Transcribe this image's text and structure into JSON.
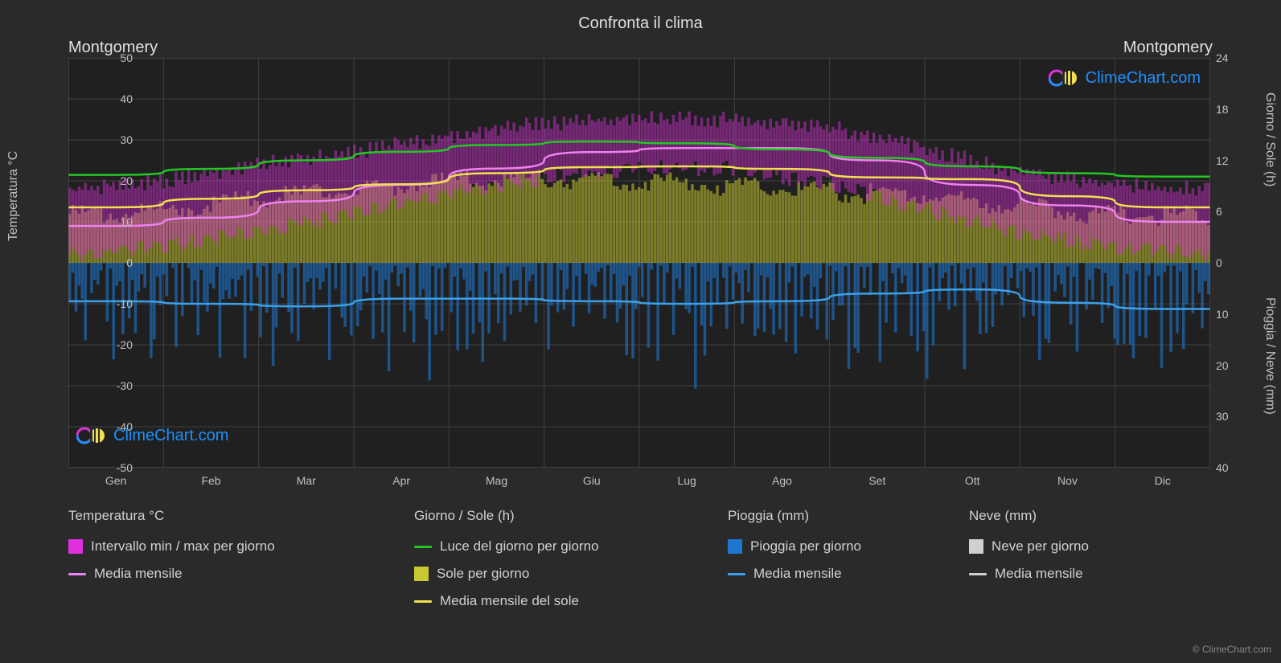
{
  "title": "Confronta il clima",
  "city_left": "Montgomery",
  "city_right": "Montgomery",
  "chart": {
    "background_color": "#2a2a2a",
    "plot_background": "#252525",
    "grid_color": "#404040",
    "text_color": "#c0c0c0",
    "months": [
      "Gen",
      "Feb",
      "Mar",
      "Apr",
      "Mag",
      "Giu",
      "Lug",
      "Ago",
      "Set",
      "Ott",
      "Nov",
      "Dic"
    ],
    "y_left": {
      "label": "Temperatura °C",
      "min": -50,
      "max": 50,
      "step": 10
    },
    "y_right_top": {
      "label": "Giorno / Sole (h)",
      "min": 0,
      "max": 24,
      "step": 6
    },
    "y_right_bottom": {
      "label": "Pioggia / Neve (mm)",
      "min": 0,
      "max": 40,
      "step": 10
    },
    "series": {
      "temp_range": {
        "color": "#e030e0",
        "max": [
          18,
          20,
          24,
          27,
          31,
          34,
          35,
          35,
          33,
          28,
          22,
          19
        ],
        "min": [
          2,
          4,
          8,
          12,
          17,
          21,
          23,
          23,
          19,
          13,
          7,
          4
        ]
      },
      "temp_mean": {
        "color": "#ee82ee",
        "values": [
          9,
          11,
          15,
          19,
          23,
          27,
          28,
          28,
          25,
          19,
          14,
          10
        ],
        "line_width": 2.5
      },
      "daylight": {
        "color": "#22c822",
        "values": [
          10.3,
          11.0,
          12.0,
          13.0,
          13.8,
          14.2,
          14.0,
          13.3,
          12.3,
          11.3,
          10.5,
          10.1
        ],
        "line_width": 2.5
      },
      "sun_area": {
        "color": "#c8c832",
        "values": [
          5.5,
          6.2,
          7.5,
          8.5,
          9.5,
          10.0,
          9.5,
          9.0,
          8.2,
          8.0,
          6.5,
          5.5
        ],
        "opacity": 0.55
      },
      "sun_mean": {
        "color": "#f0e050",
        "values": [
          6.5,
          7.5,
          8.5,
          9.2,
          10.5,
          11.2,
          11.3,
          11.0,
          10.0,
          9.8,
          7.8,
          6.5
        ],
        "line_width": 2.5
      },
      "rain_bars": {
        "color": "#1e78d2",
        "sample_max": 20,
        "opacity": 0.6
      },
      "rain_mean": {
        "color": "#3ca0e8",
        "values": [
          7.5,
          8.0,
          8.5,
          7.0,
          7.0,
          7.5,
          8.0,
          7.5,
          6.0,
          5.2,
          7.8,
          9.0
        ],
        "line_width": 2.5
      },
      "snow": {
        "color": "#d0d0d0",
        "values": [
          0,
          0,
          0,
          0,
          0,
          0,
          0,
          0,
          0,
          0,
          0,
          0
        ]
      }
    }
  },
  "legend": {
    "col1": {
      "heading": "Temperatura °C",
      "items": [
        {
          "type": "box",
          "color": "#e030e0",
          "label": "Intervallo min / max per giorno"
        },
        {
          "type": "line",
          "color": "#ee82ee",
          "label": "Media mensile"
        }
      ]
    },
    "col2": {
      "heading": "Giorno / Sole (h)",
      "items": [
        {
          "type": "line",
          "color": "#22c822",
          "label": "Luce del giorno per giorno"
        },
        {
          "type": "box",
          "color": "#c8c832",
          "label": "Sole per giorno"
        },
        {
          "type": "line",
          "color": "#f0e050",
          "label": "Media mensile del sole"
        }
      ]
    },
    "col3": {
      "heading": "Pioggia (mm)",
      "items": [
        {
          "type": "box",
          "color": "#1e78d2",
          "label": "Pioggia per giorno"
        },
        {
          "type": "line",
          "color": "#3ca0e8",
          "label": "Media mensile"
        }
      ]
    },
    "col4": {
      "heading": "Neve (mm)",
      "items": [
        {
          "type": "box",
          "color": "#d0d0d0",
          "label": "Neve per giorno"
        },
        {
          "type": "line",
          "color": "#d0d0d0",
          "label": "Media mensile"
        }
      ]
    }
  },
  "watermark_text": "ClimeChart.com",
  "copyright": "© ClimeChart.com"
}
